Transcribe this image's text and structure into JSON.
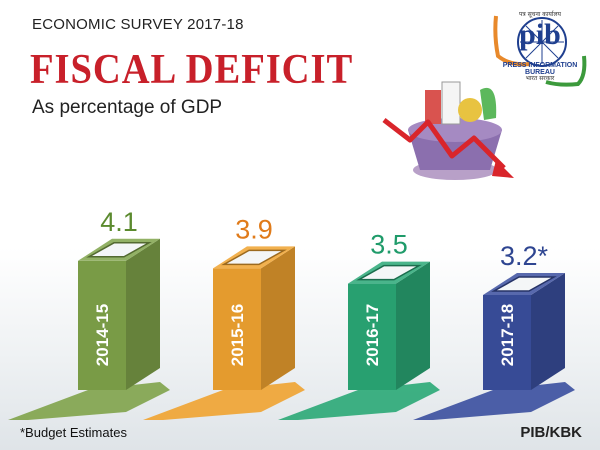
{
  "header": {
    "survey": "ECONOMIC SURVEY 2017-18",
    "title": "FISCAL DEFICIT",
    "subtitle": "As percentage of GDP"
  },
  "logo": {
    "word": "pib",
    "name": "PRESS INFORMATION BUREAU",
    "hindi_top": "पत्र सूचना कार्यालय",
    "hindi_bottom": "भारत सरकार",
    "icon": "pib-logo"
  },
  "illustration": {
    "icon": "grocery-basket-falling-arrow-icon"
  },
  "footer": {
    "note": "*Budget Estimates",
    "credit": "PIB/KBK"
  },
  "chart_data": {
    "type": "bar",
    "title": "FISCAL DEFICIT",
    "subtitle": "As percentage of GDP",
    "categories": [
      "2014-15",
      "2015-16",
      "2016-17",
      "2017-18"
    ],
    "values": [
      4.1,
      3.9,
      3.5,
      3.2
    ],
    "value_labels": [
      "4.1",
      "3.9",
      "3.5",
      "3.2*"
    ],
    "colors": [
      "#7fa34a",
      "#f0a330",
      "#2aa876",
      "#3a4f9e"
    ],
    "label_colors": [
      "#5b8a2e",
      "#e07b1a",
      "#1f9b6a",
      "#2e4591"
    ],
    "xlabel": "",
    "ylabel": "",
    "grid": false,
    "legend": "none"
  }
}
